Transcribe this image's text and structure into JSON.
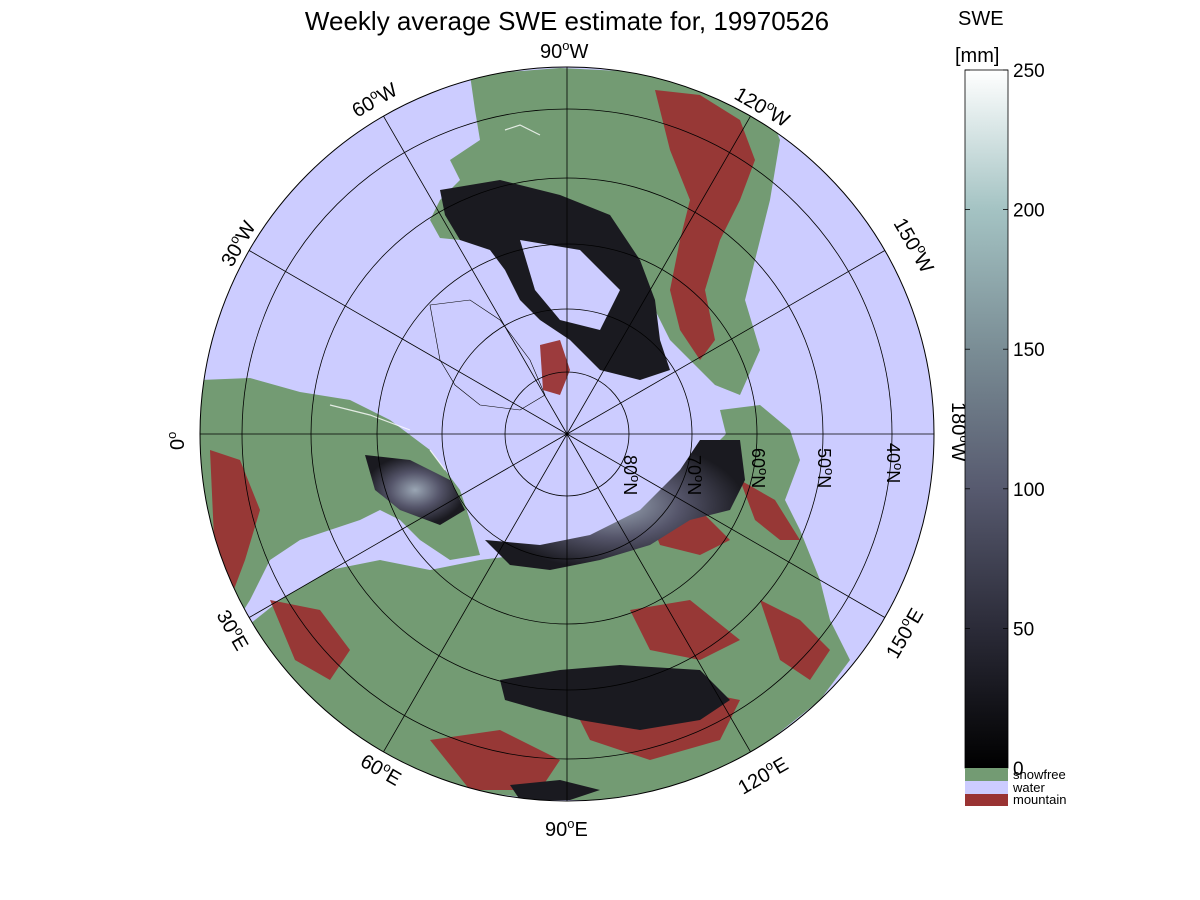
{
  "title": "Weekly average SWE estimate for, 19970526",
  "colorbar": {
    "label_line1": "SWE",
    "label_line2": "[mm]",
    "ticks": [
      "250",
      "200",
      "150",
      "100",
      "50",
      "0"
    ],
    "tick_values": [
      250,
      200,
      150,
      100,
      50,
      0
    ],
    "range": [
      0,
      250
    ],
    "colormap": [
      "#000000",
      "#2b2b38",
      "#575a6f",
      "#7a8d95",
      "#a4c3c3",
      "#ffffff"
    ],
    "categories": [
      {
        "label": "snowfree",
        "color": "#739b73"
      },
      {
        "label": "water",
        "color": "#ccccff"
      },
      {
        "label": "mountain",
        "color": "#993333"
      }
    ]
  },
  "map": {
    "projection": "north polar stereographic",
    "longitude_labels": [
      {
        "deg": "90",
        "hemi": "W"
      },
      {
        "deg": "60",
        "hemi": "W"
      },
      {
        "deg": "120",
        "hemi": "W"
      },
      {
        "deg": "30",
        "hemi": "W"
      },
      {
        "deg": "150",
        "hemi": "W"
      },
      {
        "deg": "0",
        "hemi": ""
      },
      {
        "deg": "180",
        "hemi": "W"
      },
      {
        "deg": "30",
        "hemi": "E"
      },
      {
        "deg": "150",
        "hemi": "E"
      },
      {
        "deg": "60",
        "hemi": "E"
      },
      {
        "deg": "120",
        "hemi": "E"
      },
      {
        "deg": "90",
        "hemi": "E"
      }
    ],
    "latitude_labels": [
      {
        "deg": "80",
        "hemi": "N"
      },
      {
        "deg": "70",
        "hemi": "N"
      },
      {
        "deg": "60",
        "hemi": "N"
      },
      {
        "deg": "50",
        "hemi": "N"
      },
      {
        "deg": "40",
        "hemi": "N"
      }
    ],
    "colors": {
      "ocean": "#ccccff",
      "land": "#739b73",
      "mountain": "#993333",
      "snow_low": "#1a1a20",
      "snow_mid": "#55556a",
      "snow_high": "#9aa6b4"
    }
  }
}
